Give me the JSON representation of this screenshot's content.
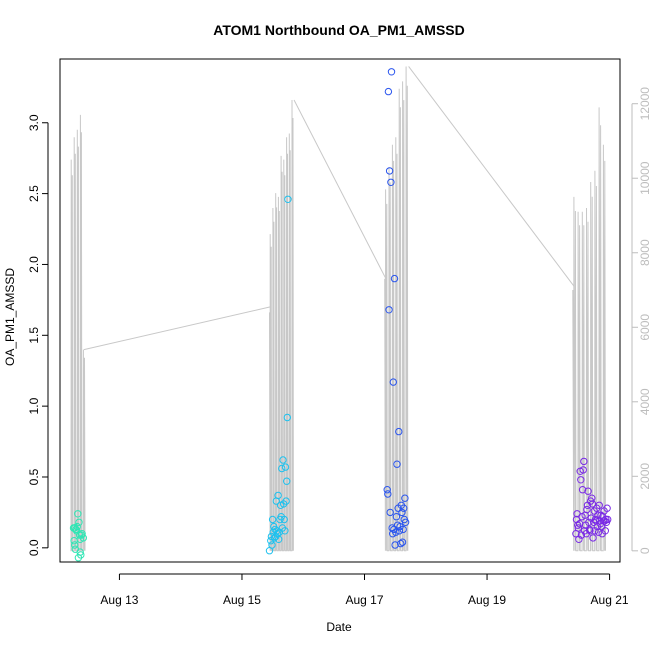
{
  "chart_data": {
    "type": "scatter",
    "title": "ATOM1 Northbound OA_PM1_AMSSD",
    "xlabel": "Date",
    "ylabel": "OA_PM1_AMSSD",
    "x_unit": "days (August)",
    "xlim": [
      12.03,
      21.17
    ],
    "ylim": [
      -0.1,
      3.45
    ],
    "y2lim": [
      -300,
      13200
    ],
    "x_ticks": [
      {
        "value": 13,
        "label": "Aug 13"
      },
      {
        "value": 15,
        "label": "Aug 15"
      },
      {
        "value": 17,
        "label": "Aug 17"
      },
      {
        "value": 19,
        "label": "Aug 19"
      },
      {
        "value": 21,
        "label": "Aug 21"
      }
    ],
    "y_ticks": [
      {
        "value": 0.0,
        "label": "0.0"
      },
      {
        "value": 0.5,
        "label": "0.5"
      },
      {
        "value": 1.0,
        "label": "1.0"
      },
      {
        "value": 1.5,
        "label": "1.5"
      },
      {
        "value": 2.0,
        "label": "2.0"
      },
      {
        "value": 2.5,
        "label": "2.5"
      },
      {
        "value": 3.0,
        "label": "3.0"
      }
    ],
    "y2_ticks": [
      {
        "value": 0,
        "label": "0"
      },
      {
        "value": 2000,
        "label": "2000"
      },
      {
        "value": 4000,
        "label": "4000"
      },
      {
        "value": 6000,
        "label": "6000"
      },
      {
        "value": 8000,
        "label": "8000"
      },
      {
        "value": 10000,
        "label": "10000"
      },
      {
        "value": 12000,
        "label": "12000"
      }
    ],
    "grid": false,
    "line_color": "#c8c8c8",
    "right_axis_color": "#bdbdbd",
    "series": [
      {
        "color": "#2ee6b4",
        "points": [
          [
            12.25,
            0.14
          ],
          [
            12.26,
            0.05
          ],
          [
            12.27,
            0.02
          ],
          [
            12.27,
            0.14
          ],
          [
            12.28,
            -0.01
          ],
          [
            12.29,
            0.13
          ],
          [
            12.3,
            0.12
          ],
          [
            12.31,
            0.15
          ],
          [
            12.32,
            0.24
          ],
          [
            12.33,
            -0.07
          ],
          [
            12.34,
            0.18
          ],
          [
            12.35,
            0.09
          ],
          [
            12.36,
            0.06
          ],
          [
            12.36,
            -0.03
          ],
          [
            12.37,
            -0.05
          ],
          [
            12.38,
            0.09
          ],
          [
            12.39,
            0.1
          ],
          [
            12.41,
            0.07
          ]
        ]
      },
      {
        "color": "#1ec1ee",
        "points": [
          [
            15.45,
            -0.02
          ],
          [
            15.47,
            0.05
          ],
          [
            15.48,
            0.08
          ],
          [
            15.49,
            0.02
          ],
          [
            15.5,
            0.2
          ],
          [
            15.51,
            0.11
          ],
          [
            15.52,
            0.15
          ],
          [
            15.53,
            0.07
          ],
          [
            15.54,
            0.13
          ],
          [
            15.55,
            0.08
          ],
          [
            15.56,
            0.33
          ],
          [
            15.57,
            0.12
          ],
          [
            15.58,
            0.1
          ],
          [
            15.59,
            0.37
          ],
          [
            15.6,
            0.06
          ],
          [
            15.61,
            0.11
          ],
          [
            15.62,
            0.2
          ],
          [
            15.63,
            0.3
          ],
          [
            15.64,
            0.22
          ],
          [
            15.65,
            0.56
          ],
          [
            15.66,
            0.14
          ],
          [
            15.67,
            0.62
          ],
          [
            15.68,
            0.31
          ],
          [
            15.69,
            0.2
          ],
          [
            15.7,
            0.12
          ],
          [
            15.71,
            0.57
          ],
          [
            15.72,
            0.33
          ],
          [
            15.73,
            0.47
          ],
          [
            15.74,
            0.92
          ],
          [
            15.75,
            2.46
          ]
        ]
      },
      {
        "color": "#2a55ee",
        "points": [
          [
            17.37,
            0.41
          ],
          [
            17.38,
            0.38
          ],
          [
            17.39,
            3.22
          ],
          [
            17.4,
            1.68
          ],
          [
            17.41,
            2.66
          ],
          [
            17.42,
            0.25
          ],
          [
            17.43,
            2.58
          ],
          [
            17.44,
            3.36
          ],
          [
            17.45,
            0.14
          ],
          [
            17.46,
            0.1
          ],
          [
            17.47,
            1.17
          ],
          [
            17.48,
            0.13
          ],
          [
            17.49,
            1.9
          ],
          [
            17.5,
            0.02
          ],
          [
            17.51,
            0.11
          ],
          [
            17.52,
            0.22
          ],
          [
            17.53,
            0.59
          ],
          [
            17.54,
            0.16
          ],
          [
            17.55,
            0.28
          ],
          [
            17.56,
            0.82
          ],
          [
            17.57,
            0.12
          ],
          [
            17.58,
            0.15
          ],
          [
            17.59,
            0.03
          ],
          [
            17.6,
            0.3
          ],
          [
            17.61,
            0.25
          ],
          [
            17.62,
            0.04
          ],
          [
            17.63,
            0.13
          ],
          [
            17.64,
            0.28
          ],
          [
            17.65,
            0.2
          ],
          [
            17.66,
            0.35
          ],
          [
            17.67,
            0.18
          ]
        ]
      },
      {
        "color": "#7a2ae6",
        "points": [
          [
            20.45,
            0.1
          ],
          [
            20.46,
            0.2
          ],
          [
            20.47,
            0.24
          ],
          [
            20.48,
            0.16
          ],
          [
            20.49,
            0.14
          ],
          [
            20.5,
            0.06
          ],
          [
            20.51,
            0.17
          ],
          [
            20.52,
            0.54
          ],
          [
            20.53,
            0.48
          ],
          [
            20.54,
            0.09
          ],
          [
            20.55,
            0.22
          ],
          [
            20.56,
            0.41
          ],
          [
            20.57,
            0.55
          ],
          [
            20.58,
            0.61
          ],
          [
            20.59,
            0.12
          ],
          [
            20.6,
            0.23
          ],
          [
            20.61,
            0.16
          ],
          [
            20.62,
            0.1
          ],
          [
            20.63,
            0.27
          ],
          [
            20.64,
            0.3
          ],
          [
            20.65,
            0.4
          ],
          [
            20.66,
            0.18
          ],
          [
            20.67,
            0.13
          ],
          [
            20.68,
            0.12
          ],
          [
            20.69,
            0.33
          ],
          [
            20.7,
            0.21
          ],
          [
            20.71,
            0.35
          ],
          [
            20.72,
            0.31
          ],
          [
            20.73,
            0.07
          ],
          [
            20.74,
            0.18
          ],
          [
            20.75,
            0.26
          ],
          [
            20.76,
            0.12
          ],
          [
            20.77,
            0.2
          ],
          [
            20.78,
            0.19
          ],
          [
            20.79,
            0.28
          ],
          [
            20.8,
            0.15
          ],
          [
            20.81,
            0.23
          ],
          [
            20.82,
            0.11
          ],
          [
            20.83,
            0.3
          ],
          [
            20.84,
            0.19
          ],
          [
            20.85,
            0.17
          ],
          [
            20.86,
            0.23
          ],
          [
            20.87,
            0.15
          ],
          [
            20.88,
            0.1
          ],
          [
            20.89,
            0.22
          ],
          [
            20.9,
            0.19
          ],
          [
            20.91,
            0.26
          ],
          [
            20.92,
            0.19
          ],
          [
            20.93,
            0.12
          ],
          [
            20.94,
            0.2
          ],
          [
            20.95,
            0.18
          ],
          [
            20.96,
            0.28
          ],
          [
            20.97,
            0.2
          ]
        ]
      }
    ],
    "line_series": {
      "bursts": [
        {
          "x_start": 12.2,
          "x_end": 12.45,
          "peaks": [
            10500,
            11100,
            11300,
            11700,
            5400
          ],
          "start_base": 0
        },
        {
          "x_start": 15.45,
          "x_end": 15.85,
          "peaks": [
            8500,
            9200,
            9600,
            9500,
            10600,
            10500,
            11100,
            11200,
            12100
          ],
          "start_base": 6400
        },
        {
          "x_start": 17.33,
          "x_end": 17.72,
          "peaks": [
            9700,
            10300,
            10900,
            11100,
            12400,
            12600,
            13000
          ],
          "start_base": 7300
        },
        {
          "x_start": 20.4,
          "x_end": 20.95,
          "peaks": [
            9500,
            9100,
            9100,
            9200,
            9900,
            10200,
            11900,
            10900
          ],
          "start_base": 7000
        }
      ],
      "connectors": [
        [
          [
            12.42,
            5400
          ],
          [
            15.47,
            6550
          ]
        ],
        [
          [
            15.85,
            12100
          ],
          [
            17.35,
            7300
          ]
        ],
        [
          [
            17.72,
            13000
          ],
          [
            20.42,
            7100
          ]
        ]
      ]
    }
  }
}
